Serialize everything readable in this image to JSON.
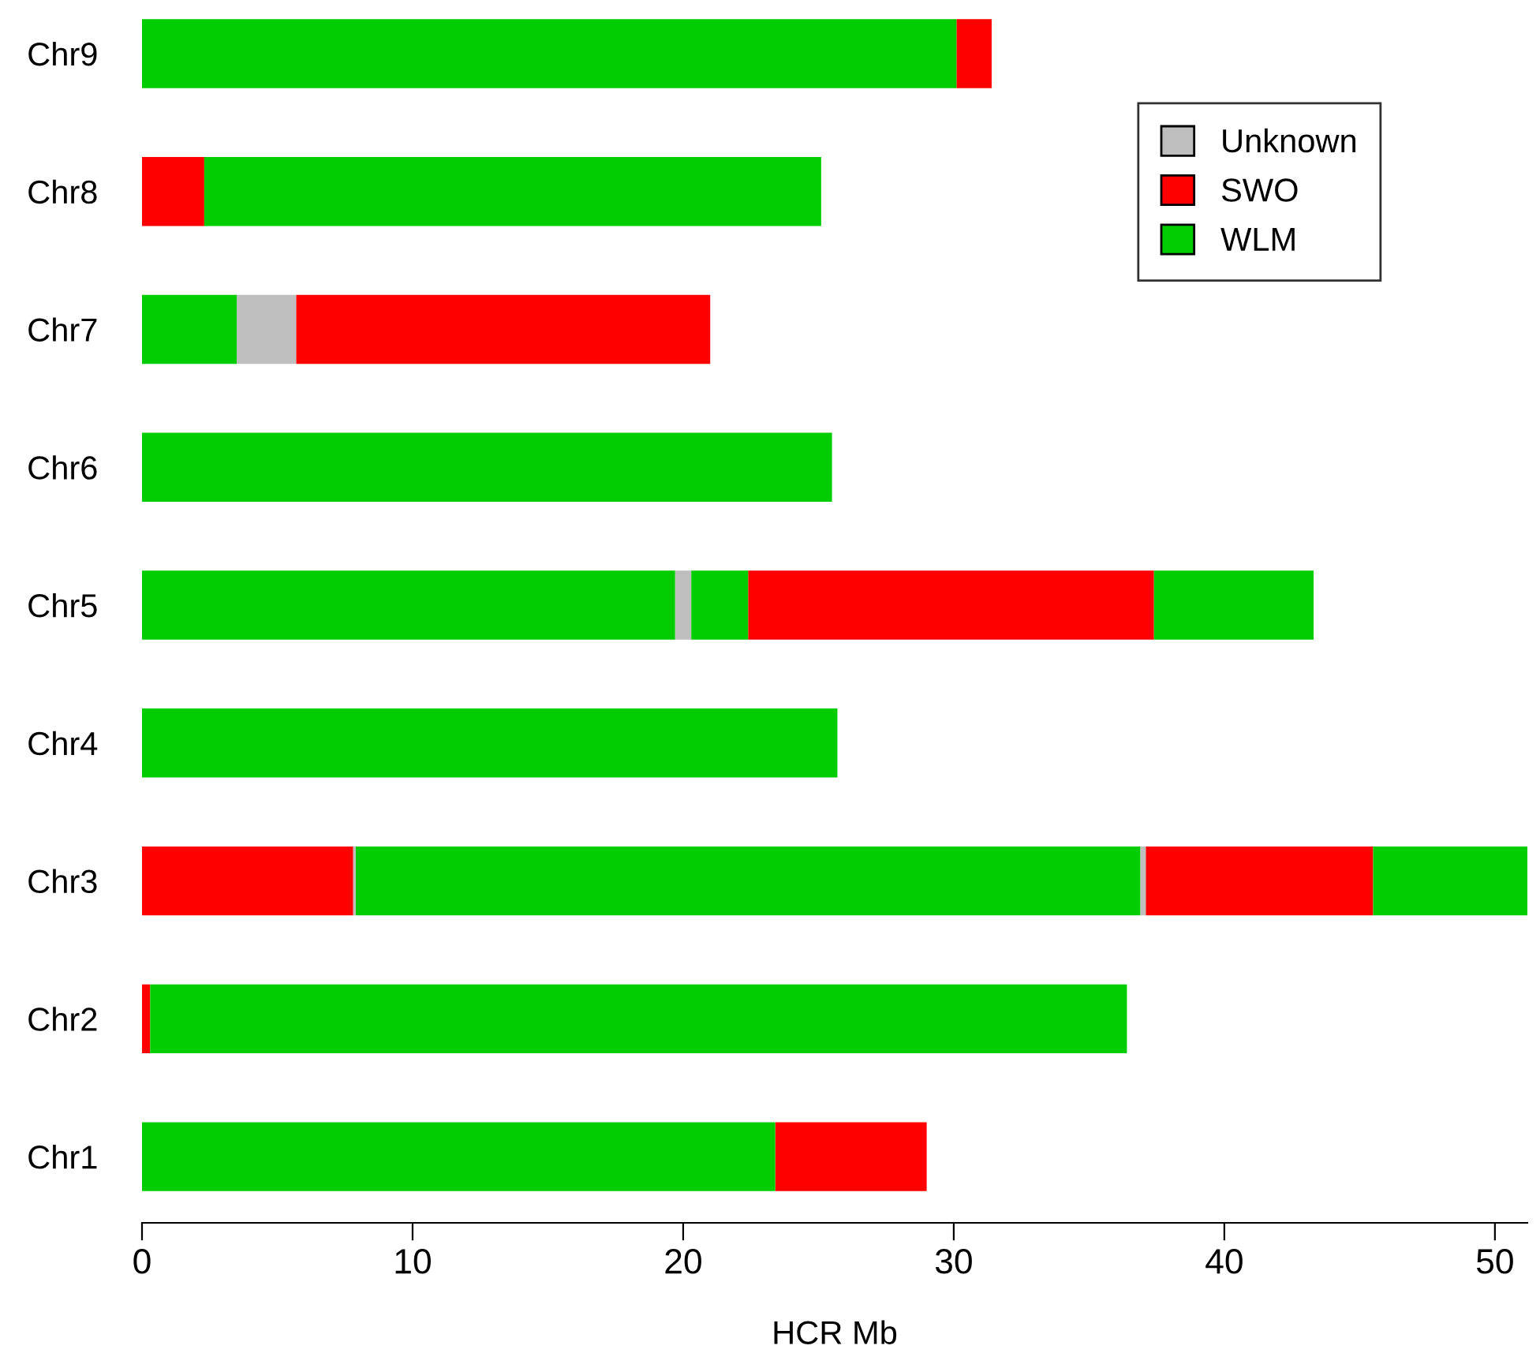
{
  "chart_data": {
    "type": "bar",
    "orientation": "horizontal",
    "xlabel": "HCR Mb",
    "categories": [
      "Chr9",
      "Chr8",
      "Chr7",
      "Chr6",
      "Chr5",
      "Chr4",
      "Chr3",
      "Chr2",
      "Chr1"
    ],
    "series": [
      {
        "name": "Unknown",
        "color": "#bebebe",
        "base": [
          null,
          null,
          3.5,
          null,
          19.7,
          null,
          7.8,
          null,
          null
        ],
        "values": [
          null,
          null,
          2.2,
          null,
          0.6,
          null,
          0.1,
          null,
          null
        ]
      },
      {
        "name": "SWO",
        "color": "#ff0000",
        "base": [
          30.1,
          0,
          5.7,
          null,
          22.4,
          null,
          0,
          0,
          23.4
        ],
        "values": [
          1.3,
          2.3,
          15.3,
          null,
          15.0,
          null,
          7.8,
          0.3,
          5.6
        ]
      },
      {
        "name": "WLM",
        "color": "#00cd00",
        "base": [
          0,
          2.3,
          0,
          0,
          0,
          0,
          7.9,
          0.3,
          0
        ],
        "values": [
          30.1,
          22.8,
          3.5,
          25.5,
          19.7,
          25.7,
          29.0,
          36.1,
          23.4
        ]
      },
      {
        "color": "#bebebe",
        "base": [
          null,
          null,
          null,
          null,
          null,
          null,
          36.9,
          null,
          null
        ],
        "values": [
          null,
          null,
          null,
          null,
          null,
          null,
          0.2,
          null,
          null
        ]
      },
      {
        "color": "#ff0000",
        "base": [
          null,
          null,
          null,
          null,
          null,
          null,
          37.1,
          null,
          null
        ],
        "values": [
          null,
          null,
          null,
          null,
          null,
          null,
          8.4,
          null,
          null
        ]
      },
      {
        "color": "#00cd00",
        "base": [
          null,
          null,
          null,
          null,
          20.3,
          null,
          45.5,
          null,
          null
        ],
        "values": [
          null,
          null,
          null,
          null,
          2.1,
          null,
          5.7,
          null,
          null
        ]
      },
      {
        "color": "#00cd00",
        "base": [
          null,
          null,
          null,
          null,
          37.4,
          null,
          null,
          null,
          null
        ],
        "values": [
          null,
          null,
          null,
          null,
          5.9,
          null,
          null,
          null,
          null
        ]
      }
    ],
    "xlim": [
      0,
      51.2
    ],
    "xticks": [
      0,
      10,
      20,
      30,
      40,
      50
    ],
    "grid": false,
    "legend": "top right"
  }
}
